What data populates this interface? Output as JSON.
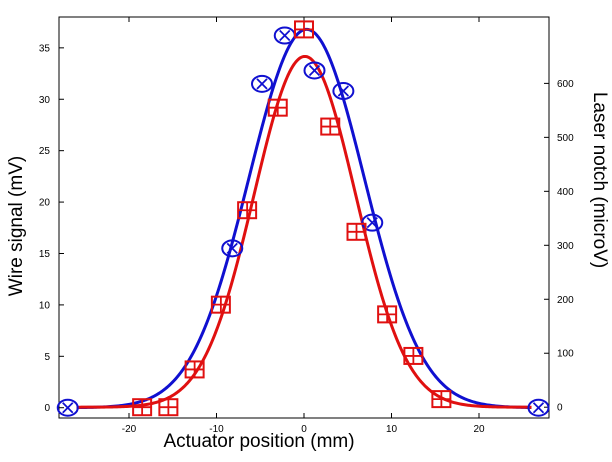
{
  "chart_data": {
    "type": "scatter",
    "title": "",
    "xlabel": "Actuator position (mm)",
    "ylabel_left": "Wire signal (mV)",
    "ylabel_right": "Laser notch (microV)",
    "xlim": [
      -28,
      28
    ],
    "ylim_left": [
      -1,
      38
    ],
    "ylim_right": [
      -20,
      723
    ],
    "x_ticks": [
      -20,
      -10,
      0,
      10,
      20
    ],
    "y_left_ticks": [
      0,
      5,
      10,
      15,
      20,
      25,
      30,
      35
    ],
    "y_right_ticks": [
      0,
      100,
      200,
      300,
      400,
      500,
      600
    ],
    "grid": false,
    "legend": "none",
    "series": [
      {
        "axis": "left",
        "marker": "circle-x",
        "color": "#1010d0",
        "x": [
          -27,
          -8.2,
          -4.8,
          -2.2,
          1.2,
          4.5,
          7.8,
          26.8
        ],
        "y": [
          0,
          15.5,
          31.5,
          36.2,
          32.8,
          30.8,
          18.0,
          0
        ]
      },
      {
        "axis": "right",
        "marker": "square-plus",
        "color": "#e01010",
        "x": [
          -18.5,
          -15.5,
          -12.5,
          -9.5,
          -6.5,
          -3.0,
          0,
          3.0,
          6.0,
          9.5,
          12.5,
          15.7
        ],
        "y": [
          0,
          0,
          70,
          190,
          365,
          555,
          700,
          520,
          325,
          172,
          95,
          15
        ]
      },
      {
        "axis": "left",
        "marker": "none",
        "line": "gaussian-fit",
        "color": "#1010d0",
        "amplitude": 36.8,
        "center": 0.3,
        "sigma": 6.6
      },
      {
        "axis": "right",
        "marker": "none",
        "line": "gaussian-fit",
        "color": "#e01010",
        "amplitude": 650,
        "center": 0.1,
        "sigma": 5.8
      }
    ]
  }
}
